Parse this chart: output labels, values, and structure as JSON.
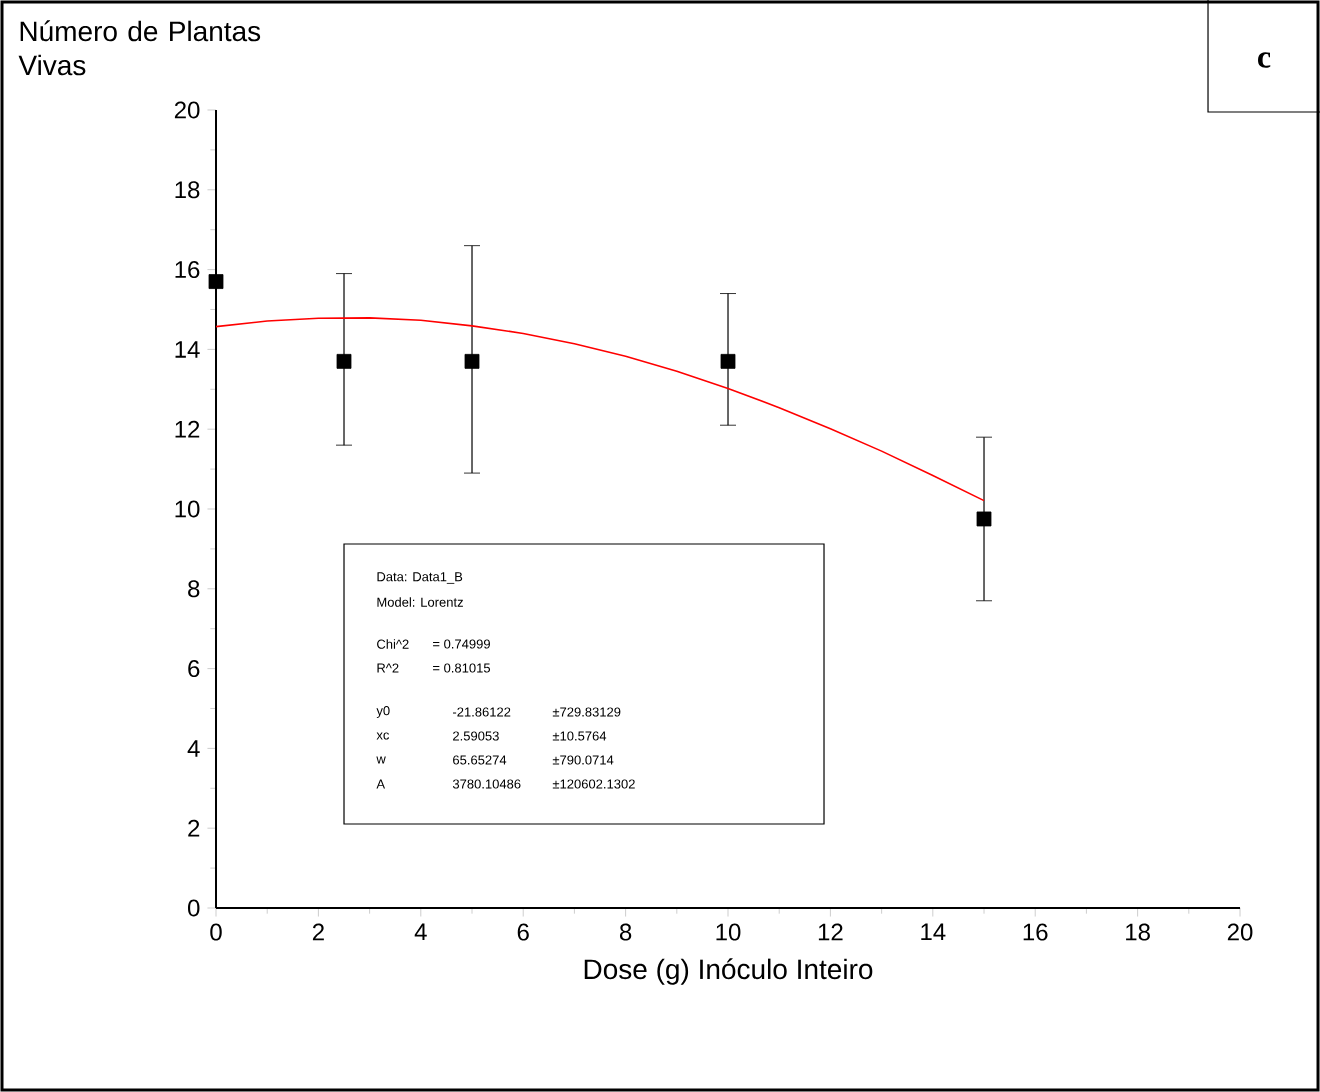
{
  "chart_data": {
    "type": "scatter",
    "xlabel": "Dose (g) Inóculo Inteiro",
    "ylabel": "Número de Plantas Vivas",
    "x": [
      0,
      2.5,
      5,
      10,
      15
    ],
    "xlim": [
      0,
      20
    ],
    "xticks": [
      0,
      2,
      4,
      6,
      8,
      10,
      12,
      14,
      16,
      18,
      20
    ],
    "ylim": [
      0,
      20
    ],
    "yticks": [
      0,
      2,
      4,
      6,
      8,
      10,
      12,
      14,
      16,
      18,
      20
    ],
    "marker": "square",
    "series": [
      {
        "color": "#000000",
        "values": [
          15.7,
          13.7,
          13.7,
          13.7,
          9.75
        ],
        "errors": [
          null,
          [
            11.6,
            15.9
          ],
          [
            10.9,
            16.6
          ],
          [
            12.1,
            15.4
          ],
          [
            7.7,
            11.8
          ]
        ]
      },
      {
        "type": "line",
        "color": "#ff0000",
        "marker": "none",
        "x": [
          0,
          1,
          2,
          3,
          4,
          5,
          6,
          7,
          8,
          9,
          10,
          11,
          12,
          13,
          14,
          15
        ],
        "values": [
          14.57,
          14.71,
          14.78,
          14.79,
          14.73,
          14.59,
          14.4,
          14.14,
          13.83,
          13.45,
          13.02,
          12.54,
          12.01,
          11.45,
          10.84,
          10.21
        ]
      }
    ],
    "annotations": [
      "Data: Data1_B",
      "Model: Lorentz",
      "Chi^2",
      "= 0.74999",
      "R^2",
      "= 0.81015",
      "y0",
      "-21.86122",
      "±729.83129",
      "xc",
      "2.59053",
      "±10.5764",
      "w",
      "65.65274",
      "±790.0714",
      "A",
      "3780.10486",
      "±120602.1302",
      "c"
    ]
  }
}
